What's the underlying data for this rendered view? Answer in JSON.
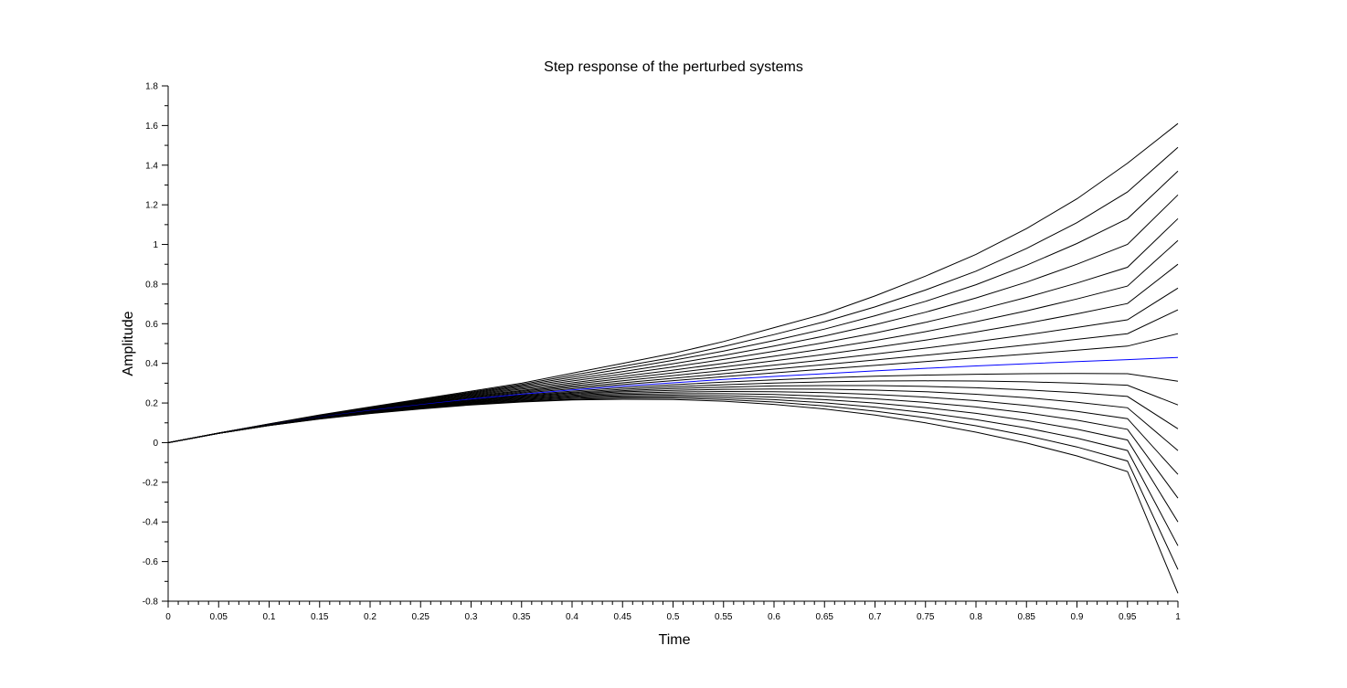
{
  "chart_data": {
    "type": "line",
    "title": "Step response of the perturbed systems",
    "xlabel": "Time",
    "ylabel": "Amplitude",
    "xlim": [
      0,
      1
    ],
    "ylim": [
      -0.8,
      1.8
    ],
    "xticks": [
      "0",
      "0.05",
      "0.1",
      "0.15",
      "0.2",
      "0.25",
      "0.3",
      "0.35",
      "0.4",
      "0.45",
      "0.5",
      "0.55",
      "0.6",
      "0.65",
      "0.7",
      "0.75",
      "0.8",
      "0.85",
      "0.9",
      "0.95",
      "1"
    ],
    "xtick_values": [
      0,
      0.05,
      0.1,
      0.15,
      0.2,
      0.25,
      0.3,
      0.35,
      0.4,
      0.45,
      0.5,
      0.55,
      0.6,
      0.65,
      0.7,
      0.75,
      0.8,
      0.85,
      0.9,
      0.95,
      1
    ],
    "yticks": [
      "-0.8",
      "-0.6",
      "-0.4",
      "-0.2",
      "0",
      "0.2",
      "0.4",
      "0.6",
      "0.8",
      "1",
      "1.2",
      "1.4",
      "1.6",
      "1.8"
    ],
    "ytick_values": [
      -0.8,
      -0.6,
      -0.4,
      -0.2,
      0,
      0.2,
      0.4,
      0.6,
      0.8,
      1,
      1.2,
      1.4,
      1.6,
      1.8
    ],
    "grid": false,
    "legend": "none",
    "nominal_color": "#0000ff",
    "perturbed_color": "#000000",
    "x": [
      0,
      0.05,
      0.1,
      0.15,
      0.2,
      0.25,
      0.3,
      0.35,
      0.4,
      0.45,
      0.5,
      0.55,
      0.6,
      0.65,
      0.7,
      0.75,
      0.8,
      0.85,
      0.9,
      0.95,
      1
    ],
    "series": [
      {
        "color": "#000000",
        "values": [
          0,
          0.048,
          0.095,
          0.14,
          0.18,
          0.22,
          0.26,
          0.3,
          0.35,
          0.4,
          0.45,
          0.51,
          0.58,
          0.65,
          0.74,
          0.84,
          0.95,
          1.08,
          1.23,
          1.41,
          1.61
        ]
      },
      {
        "color": "#000000",
        "values": [
          0,
          0.048,
          0.094,
          0.138,
          0.178,
          0.217,
          0.255,
          0.294,
          0.34,
          0.385,
          0.43,
          0.485,
          0.545,
          0.61,
          0.685,
          0.77,
          0.865,
          0.98,
          1.11,
          1.265,
          1.49
        ]
      },
      {
        "color": "#000000",
        "values": [
          0,
          0.048,
          0.094,
          0.137,
          0.176,
          0.214,
          0.251,
          0.288,
          0.33,
          0.372,
          0.415,
          0.462,
          0.515,
          0.573,
          0.64,
          0.713,
          0.797,
          0.895,
          1.005,
          1.13,
          1.37
        ]
      },
      {
        "color": "#000000",
        "values": [
          0,
          0.048,
          0.093,
          0.136,
          0.175,
          0.211,
          0.247,
          0.282,
          0.32,
          0.358,
          0.398,
          0.44,
          0.487,
          0.538,
          0.595,
          0.658,
          0.73,
          0.81,
          0.9,
          1.0,
          1.25
        ]
      },
      {
        "color": "#000000",
        "values": [
          0,
          0.048,
          0.093,
          0.135,
          0.173,
          0.208,
          0.243,
          0.276,
          0.311,
          0.346,
          0.382,
          0.42,
          0.461,
          0.505,
          0.553,
          0.607,
          0.667,
          0.733,
          0.805,
          0.885,
          1.13
        ]
      },
      {
        "color": "#000000",
        "values": [
          0,
          0.048,
          0.093,
          0.134,
          0.171,
          0.205,
          0.239,
          0.27,
          0.302,
          0.334,
          0.366,
          0.4,
          0.436,
          0.474,
          0.515,
          0.56,
          0.61,
          0.665,
          0.725,
          0.79,
          1.02
        ]
      },
      {
        "color": "#000000",
        "values": [
          0,
          0.048,
          0.092,
          0.133,
          0.169,
          0.202,
          0.235,
          0.264,
          0.294,
          0.323,
          0.352,
          0.382,
          0.413,
          0.445,
          0.48,
          0.517,
          0.558,
          0.602,
          0.65,
          0.702,
          0.9
        ]
      },
      {
        "color": "#000000",
        "values": [
          0,
          0.048,
          0.092,
          0.132,
          0.167,
          0.199,
          0.231,
          0.259,
          0.286,
          0.312,
          0.338,
          0.364,
          0.391,
          0.418,
          0.447,
          0.477,
          0.509,
          0.544,
          0.581,
          0.62,
          0.78
        ]
      },
      {
        "color": "#000000",
        "values": [
          0,
          0.047,
          0.091,
          0.131,
          0.165,
          0.196,
          0.227,
          0.254,
          0.279,
          0.302,
          0.325,
          0.348,
          0.371,
          0.394,
          0.417,
          0.441,
          0.466,
          0.493,
          0.521,
          0.55,
          0.67
        ]
      },
      {
        "color": "#000000",
        "values": [
          0,
          0.047,
          0.091,
          0.13,
          0.163,
          0.194,
          0.223,
          0.249,
          0.272,
          0.293,
          0.313,
          0.333,
          0.352,
          0.371,
          0.39,
          0.409,
          0.428,
          0.447,
          0.467,
          0.487,
          0.55
        ]
      },
      {
        "color": "#0000ff",
        "values": [
          0,
          0.047,
          0.09,
          0.129,
          0.162,
          0.191,
          0.22,
          0.244,
          0.266,
          0.285,
          0.302,
          0.319,
          0.334,
          0.348,
          0.362,
          0.375,
          0.387,
          0.398,
          0.409,
          0.419,
          0.43
        ]
      },
      {
        "color": "#000000",
        "values": [
          0,
          0.047,
          0.09,
          0.128,
          0.16,
          0.189,
          0.216,
          0.24,
          0.26,
          0.277,
          0.292,
          0.305,
          0.317,
          0.327,
          0.335,
          0.341,
          0.345,
          0.348,
          0.349,
          0.348,
          0.31
        ]
      },
      {
        "color": "#000000",
        "values": [
          0,
          0.047,
          0.089,
          0.127,
          0.158,
          0.186,
          0.213,
          0.236,
          0.254,
          0.269,
          0.282,
          0.292,
          0.301,
          0.307,
          0.311,
          0.312,
          0.311,
          0.307,
          0.3,
          0.29,
          0.19
        ]
      },
      {
        "color": "#000000",
        "values": [
          0,
          0.047,
          0.089,
          0.126,
          0.157,
          0.184,
          0.21,
          0.232,
          0.249,
          0.262,
          0.273,
          0.28,
          0.286,
          0.288,
          0.288,
          0.284,
          0.277,
          0.266,
          0.252,
          0.233,
          0.07
        ]
      },
      {
        "color": "#000000",
        "values": [
          0,
          0.047,
          0.088,
          0.125,
          0.155,
          0.182,
          0.207,
          0.228,
          0.244,
          0.256,
          0.264,
          0.269,
          0.271,
          0.27,
          0.265,
          0.257,
          0.244,
          0.227,
          0.204,
          0.176,
          -0.04
        ]
      },
      {
        "color": "#000000",
        "values": [
          0,
          0.047,
          0.088,
          0.124,
          0.154,
          0.18,
          0.204,
          0.224,
          0.239,
          0.249,
          0.255,
          0.258,
          0.257,
          0.252,
          0.243,
          0.23,
          0.212,
          0.188,
          0.158,
          0.121,
          -0.16
        ]
      },
      {
        "color": "#000000",
        "values": [
          0,
          0.047,
          0.088,
          0.123,
          0.152,
          0.178,
          0.201,
          0.22,
          0.234,
          0.243,
          0.247,
          0.247,
          0.243,
          0.234,
          0.221,
          0.203,
          0.18,
          0.15,
          0.113,
          0.067,
          -0.28
        ]
      },
      {
        "color": "#000000",
        "values": [
          0,
          0.047,
          0.087,
          0.122,
          0.151,
          0.176,
          0.198,
          0.216,
          0.229,
          0.237,
          0.239,
          0.237,
          0.23,
          0.217,
          0.2,
          0.177,
          0.148,
          0.112,
          0.068,
          0.013,
          -0.4
        ]
      },
      {
        "color": "#000000",
        "values": [
          0,
          0.047,
          0.087,
          0.121,
          0.149,
          0.174,
          0.195,
          0.212,
          0.224,
          0.231,
          0.232,
          0.227,
          0.217,
          0.201,
          0.179,
          0.151,
          0.116,
          0.074,
          0.023,
          -0.04,
          -0.52
        ]
      },
      {
        "color": "#000000",
        "values": [
          0,
          0.047,
          0.087,
          0.12,
          0.148,
          0.172,
          0.192,
          0.208,
          0.219,
          0.225,
          0.225,
          0.218,
          0.205,
          0.185,
          0.159,
          0.126,
          0.085,
          0.036,
          -0.022,
          -0.093,
          -0.64
        ]
      },
      {
        "color": "#000000",
        "values": [
          0,
          0.047,
          0.086,
          0.119,
          0.147,
          0.17,
          0.19,
          0.205,
          0.215,
          0.219,
          0.218,
          0.209,
          0.193,
          0.17,
          0.139,
          0.1,
          0.053,
          -0.002,
          -0.067,
          -0.146,
          -0.76
        ]
      }
    ]
  }
}
